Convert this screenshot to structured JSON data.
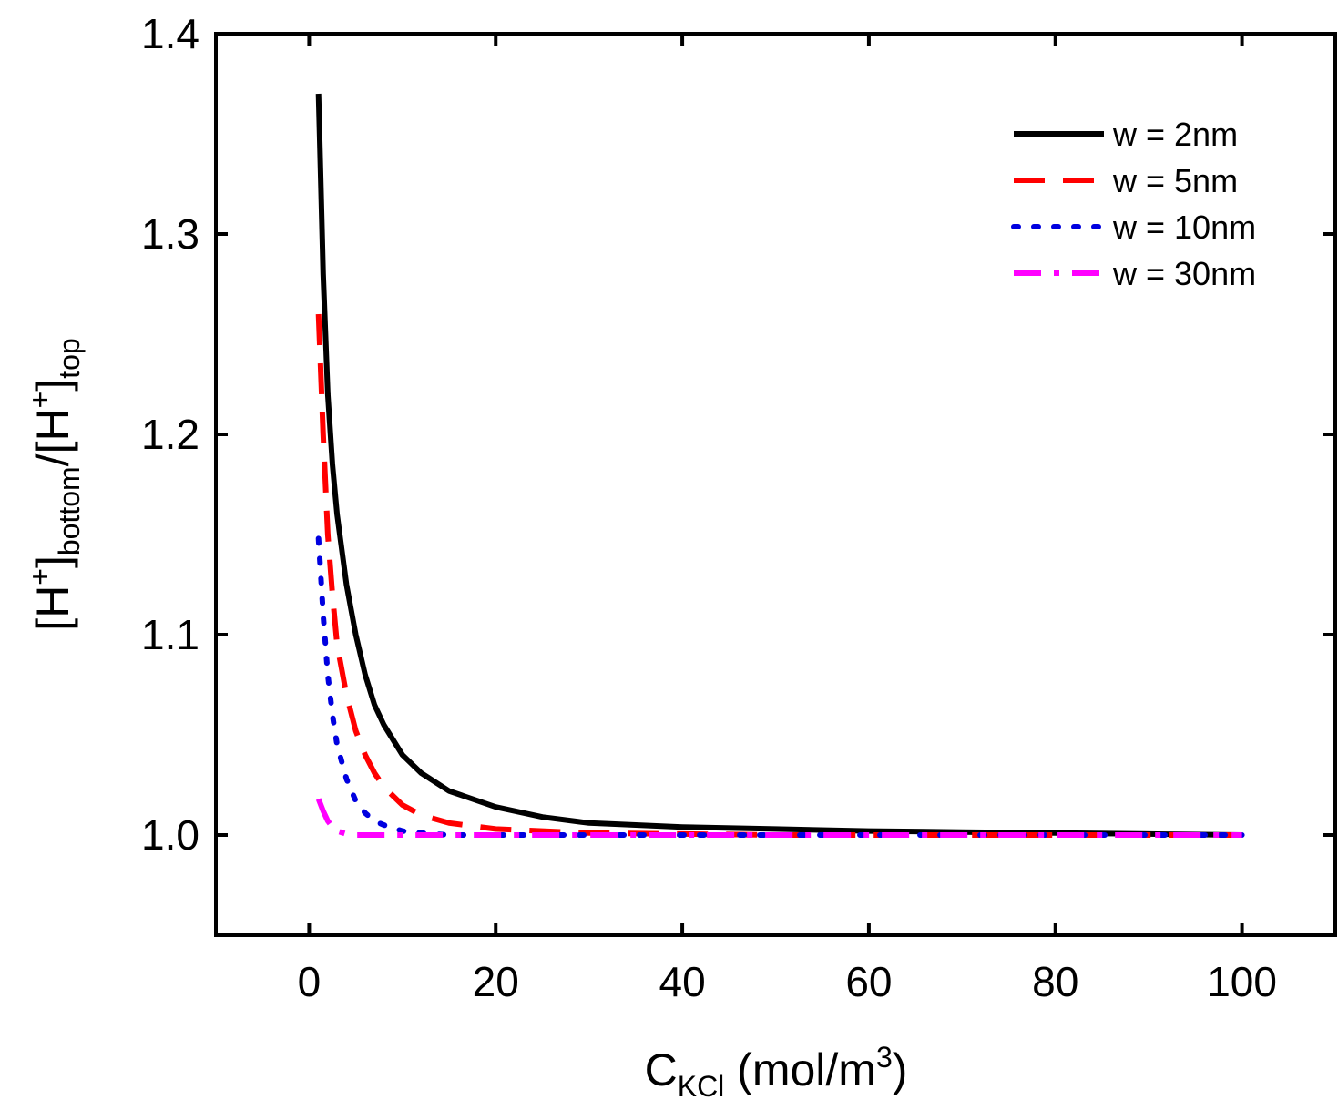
{
  "chart_data": {
    "type": "line",
    "title": "",
    "xlabel": {
      "main": "C",
      "sub": "KCl",
      "rest": " (mol/m",
      "sup": "3",
      "close": ")"
    },
    "ylabel": {
      "p1": "[H",
      "sup1": "+",
      "p2": "]",
      "sub1": "bottom",
      "p3": "/[H",
      "sup2": "+",
      "p4": "]",
      "sub2": "top"
    },
    "xlim": [
      -10,
      110
    ],
    "ylim": [
      0.95,
      1.4
    ],
    "xticks": [
      0,
      20,
      40,
      60,
      80,
      100
    ],
    "yticks": [
      1.0,
      1.1,
      1.2,
      1.3,
      1.4
    ],
    "xtick_labels": [
      "0",
      "20",
      "40",
      "60",
      "80",
      "100"
    ],
    "ytick_labels": [
      "1.0",
      "1.1",
      "1.2",
      "1.3",
      "1.4"
    ],
    "grid": false,
    "legend_position": "top-right",
    "series": [
      {
        "name": "w = 2nm",
        "color": "#000000",
        "style": "solid",
        "x": [
          1,
          1.5,
          2,
          2.5,
          3,
          4,
          5,
          6,
          7,
          8,
          10,
          12,
          15,
          20,
          25,
          30,
          40,
          50,
          60,
          70,
          80,
          90,
          100
        ],
        "y": [
          1.37,
          1.28,
          1.22,
          1.185,
          1.16,
          1.125,
          1.1,
          1.08,
          1.065,
          1.055,
          1.04,
          1.031,
          1.022,
          1.014,
          1.009,
          1.006,
          1.004,
          1.003,
          1.002,
          1.0015,
          1.001,
          1.0005,
          1.0
        ]
      },
      {
        "name": "w = 5nm",
        "color": "#ff0000",
        "style": "dashed",
        "x": [
          1,
          1.5,
          2,
          2.5,
          3,
          4,
          5,
          6,
          7,
          8,
          10,
          12,
          15,
          20,
          25,
          30,
          40,
          50,
          60,
          70,
          80,
          90,
          100
        ],
        "y": [
          1.26,
          1.2,
          1.15,
          1.12,
          1.095,
          1.07,
          1.052,
          1.04,
          1.031,
          1.024,
          1.015,
          1.01,
          1.006,
          1.003,
          1.002,
          1.001,
          1.0005,
          1.0,
          1.0,
          1.0,
          1.0,
          1.0,
          1.0
        ]
      },
      {
        "name": "w = 10nm",
        "color": "#0000e0",
        "style": "dotted",
        "x": [
          1,
          1.5,
          2,
          2.5,
          3,
          4,
          5,
          6,
          7,
          8,
          10,
          12,
          15,
          20,
          30,
          40,
          50,
          60,
          70,
          80,
          90,
          100
        ],
        "y": [
          1.148,
          1.11,
          1.08,
          1.06,
          1.045,
          1.028,
          1.017,
          1.011,
          1.007,
          1.005,
          1.002,
          1.001,
          1.0,
          1.0,
          1.0,
          1.0,
          1.0,
          1.0,
          1.0,
          1.0,
          1.0,
          1.0
        ]
      },
      {
        "name": "w = 30nm",
        "color": "#ff00ff",
        "style": "dashdot",
        "x": [
          1,
          1.5,
          2,
          2.5,
          3,
          4,
          5,
          10,
          20,
          40,
          60,
          80,
          100
        ],
        "y": [
          1.018,
          1.012,
          1.007,
          1.004,
          1.002,
          1.0005,
          1.0,
          1.0,
          1.0,
          1.0,
          1.0,
          1.0,
          1.0
        ]
      }
    ]
  }
}
